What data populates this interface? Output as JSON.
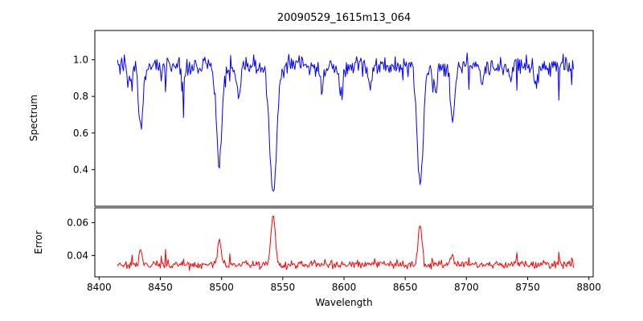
{
  "chart_data": {
    "type": "line",
    "title": "20090529_1615m13_064",
    "xlabel": "Wavelength",
    "grid": false,
    "legend": null,
    "xlim": [
      8396.5,
      8803.5
    ],
    "xticks": [
      8400,
      8450,
      8500,
      8550,
      8600,
      8650,
      8700,
      8750,
      8800
    ],
    "x_start": 8415,
    "x_end": 8788,
    "x_step": 0.7,
    "seed": 20090529,
    "panels": [
      {
        "name": "spectrum",
        "ylabel": "Spectrum",
        "color": "#0000ff",
        "ylim": [
          0.2,
          1.16
        ],
        "yticks": [
          {
            "v": 0.4,
            "label": "0.4"
          },
          {
            "v": 0.6,
            "label": "0.6"
          },
          {
            "v": 0.8,
            "label": "0.8"
          },
          {
            "v": 1.0,
            "label": "1.0"
          }
        ],
        "continuum": 0.965,
        "noise_sigma": 0.028,
        "absorption_lines": [
          {
            "center": 8424.5,
            "depth": 0.1,
            "width": 1.4
          },
          {
            "center": 8434.0,
            "depth": 0.33,
            "width": 1.8
          },
          {
            "center": 8468.5,
            "depth": 0.12,
            "width": 1.4
          },
          {
            "center": 8498.0,
            "depth": 0.53,
            "width": 2.2
          },
          {
            "center": 8514.0,
            "depth": 0.16,
            "width": 1.4
          },
          {
            "center": 8542.1,
            "depth": 0.7,
            "width": 2.8
          },
          {
            "center": 8582.0,
            "depth": 0.13,
            "width": 1.4
          },
          {
            "center": 8598.0,
            "depth": 0.15,
            "width": 1.4
          },
          {
            "center": 8621.0,
            "depth": 0.12,
            "width": 1.3
          },
          {
            "center": 8662.1,
            "depth": 0.64,
            "width": 2.5
          },
          {
            "center": 8674.8,
            "depth": 0.13,
            "width": 1.2
          },
          {
            "center": 8688.6,
            "depth": 0.31,
            "width": 1.7
          },
          {
            "center": 8713.0,
            "depth": 0.1,
            "width": 1.2
          },
          {
            "center": 8736.0,
            "depth": 0.1,
            "width": 1.2
          },
          {
            "center": 8757.0,
            "depth": 0.09,
            "width": 1.2
          }
        ]
      },
      {
        "name": "error",
        "ylabel": "Error",
        "color": "#ff0000",
        "ylim": [
          0.027,
          0.069
        ],
        "yticks": [
          {
            "v": 0.04,
            "label": "0.04"
          },
          {
            "v": 0.06,
            "label": "0.06"
          }
        ],
        "baseline": 0.0345,
        "noise_sigma": 0.0012,
        "spikes": [
          {
            "center": 8434.0,
            "amp": 0.011,
            "width": 1.2
          },
          {
            "center": 8498.0,
            "amp": 0.015,
            "width": 1.4
          },
          {
            "center": 8542.1,
            "amp": 0.031,
            "width": 1.8
          },
          {
            "center": 8662.1,
            "amp": 0.024,
            "width": 1.6
          },
          {
            "center": 8688.6,
            "amp": 0.006,
            "width": 1.2
          }
        ]
      }
    ]
  }
}
